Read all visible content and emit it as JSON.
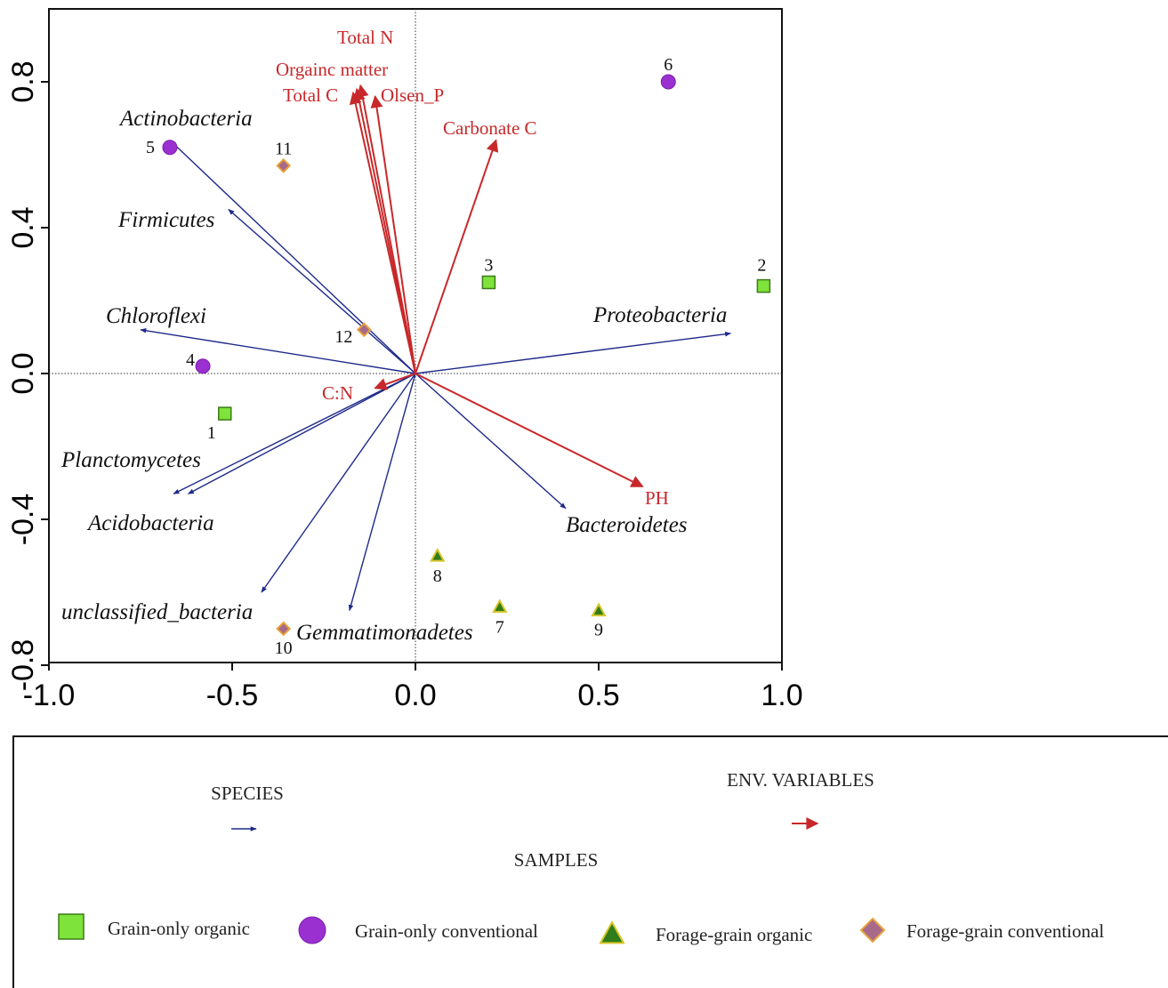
{
  "chart_data": {
    "type": "scatter",
    "subtype": "ordination-biplot",
    "xlim": [
      -1.0,
      1.0
    ],
    "ylim": [
      -0.8,
      1.0
    ],
    "x_ticks": [
      -1.0,
      -0.5,
      0.0,
      0.5,
      1.0
    ],
    "x_tick_labels": [
      "-1.0",
      "-0.5",
      "0.0",
      "0.5",
      "1.0"
    ],
    "y_ticks": [
      -0.8,
      -0.4,
      0.0,
      0.4,
      0.8
    ],
    "y_tick_labels": [
      "-0.8",
      "-0.4",
      "0.0",
      "0.4",
      "0.8"
    ],
    "grid": false,
    "zero_lines": true,
    "species": [
      {
        "name": "Actinobacteria",
        "x": -0.67,
        "y": 0.64
      },
      {
        "name": "Firmicutes",
        "x": -0.51,
        "y": 0.45
      },
      {
        "name": "Chloroflexi",
        "x": -0.75,
        "y": 0.12
      },
      {
        "name": "Proteobacteria",
        "x": 0.86,
        "y": 0.11
      },
      {
        "name": "Planctomycetes",
        "x": -0.62,
        "y": -0.33
      },
      {
        "name": "Acidobacteria",
        "x": -0.66,
        "y": -0.33
      },
      {
        "name": "Bacteroidetes",
        "x": 0.41,
        "y": -0.37
      },
      {
        "name": "unclassified_bacteria",
        "x": -0.42,
        "y": -0.6
      },
      {
        "name": "Gemmatimonadetes",
        "x": -0.18,
        "y": -0.65
      }
    ],
    "env_variables": [
      {
        "name": "Total N",
        "x": -0.15,
        "y": 0.79
      },
      {
        "name": "Orgainc matter",
        "x": -0.16,
        "y": 0.78
      },
      {
        "name": "Total C",
        "x": -0.17,
        "y": 0.77
      },
      {
        "name": "Olsen_P",
        "x": -0.11,
        "y": 0.76
      },
      {
        "name": "Carbonate C",
        "x": 0.22,
        "y": 0.64
      },
      {
        "name": "C:N",
        "x": -0.11,
        "y": -0.04
      },
      {
        "name": "PH",
        "x": 0.62,
        "y": -0.31
      }
    ],
    "samples": [
      {
        "label": "1",
        "x": -0.52,
        "y": -0.11,
        "group": "Grain-only organic"
      },
      {
        "label": "2",
        "x": 0.95,
        "y": 0.24,
        "group": "Grain-only organic"
      },
      {
        "label": "3",
        "x": 0.2,
        "y": 0.25,
        "group": "Grain-only organic"
      },
      {
        "label": "4",
        "x": -0.58,
        "y": 0.02,
        "group": "Grain-only conventional"
      },
      {
        "label": "5",
        "x": -0.67,
        "y": 0.62,
        "group": "Grain-only conventional"
      },
      {
        "label": "6",
        "x": 0.69,
        "y": 0.8,
        "group": "Grain-only conventional"
      },
      {
        "label": "7",
        "x": 0.23,
        "y": -0.64,
        "group": "Forage-grain organic"
      },
      {
        "label": "8",
        "x": 0.06,
        "y": -0.5,
        "group": "Forage-grain organic"
      },
      {
        "label": "9",
        "x": 0.5,
        "y": -0.65,
        "group": "Forage-grain organic"
      },
      {
        "label": "10",
        "x": -0.36,
        "y": -0.7,
        "group": "Forage-grain conventional"
      },
      {
        "label": "11",
        "x": -0.36,
        "y": 0.57,
        "group": "Forage-grain conventional"
      },
      {
        "label": "12",
        "x": -0.14,
        "y": 0.12,
        "group": "Forage-grain conventional"
      }
    ],
    "legend": {
      "species_title": "SPECIES",
      "env_title": "ENV. VARIABLES",
      "samples_title": "SAMPLES",
      "groups": [
        {
          "name": "Grain-only organic",
          "shape": "square"
        },
        {
          "name": "Grain-only conventional",
          "shape": "circle"
        },
        {
          "name": "Forage-grain organic",
          "shape": "triangle"
        },
        {
          "name": "Forage-grain conventional",
          "shape": "diamond"
        }
      ],
      "placement": "bottom"
    }
  },
  "colors": {
    "species_arrow": "#1e2a8a",
    "env_arrow": "#c8282a",
    "square_fill": "#7ee33a",
    "square_stroke": "#3d7a1a",
    "circle_fill": "#9b30d0",
    "circle_stroke": "#7a1fb0",
    "triangle_fill": "#2f7d1a",
    "triangle_stroke": "#d8c428",
    "diamond_fill": "#a86a8a",
    "diamond_stroke": "#e8a23a"
  }
}
